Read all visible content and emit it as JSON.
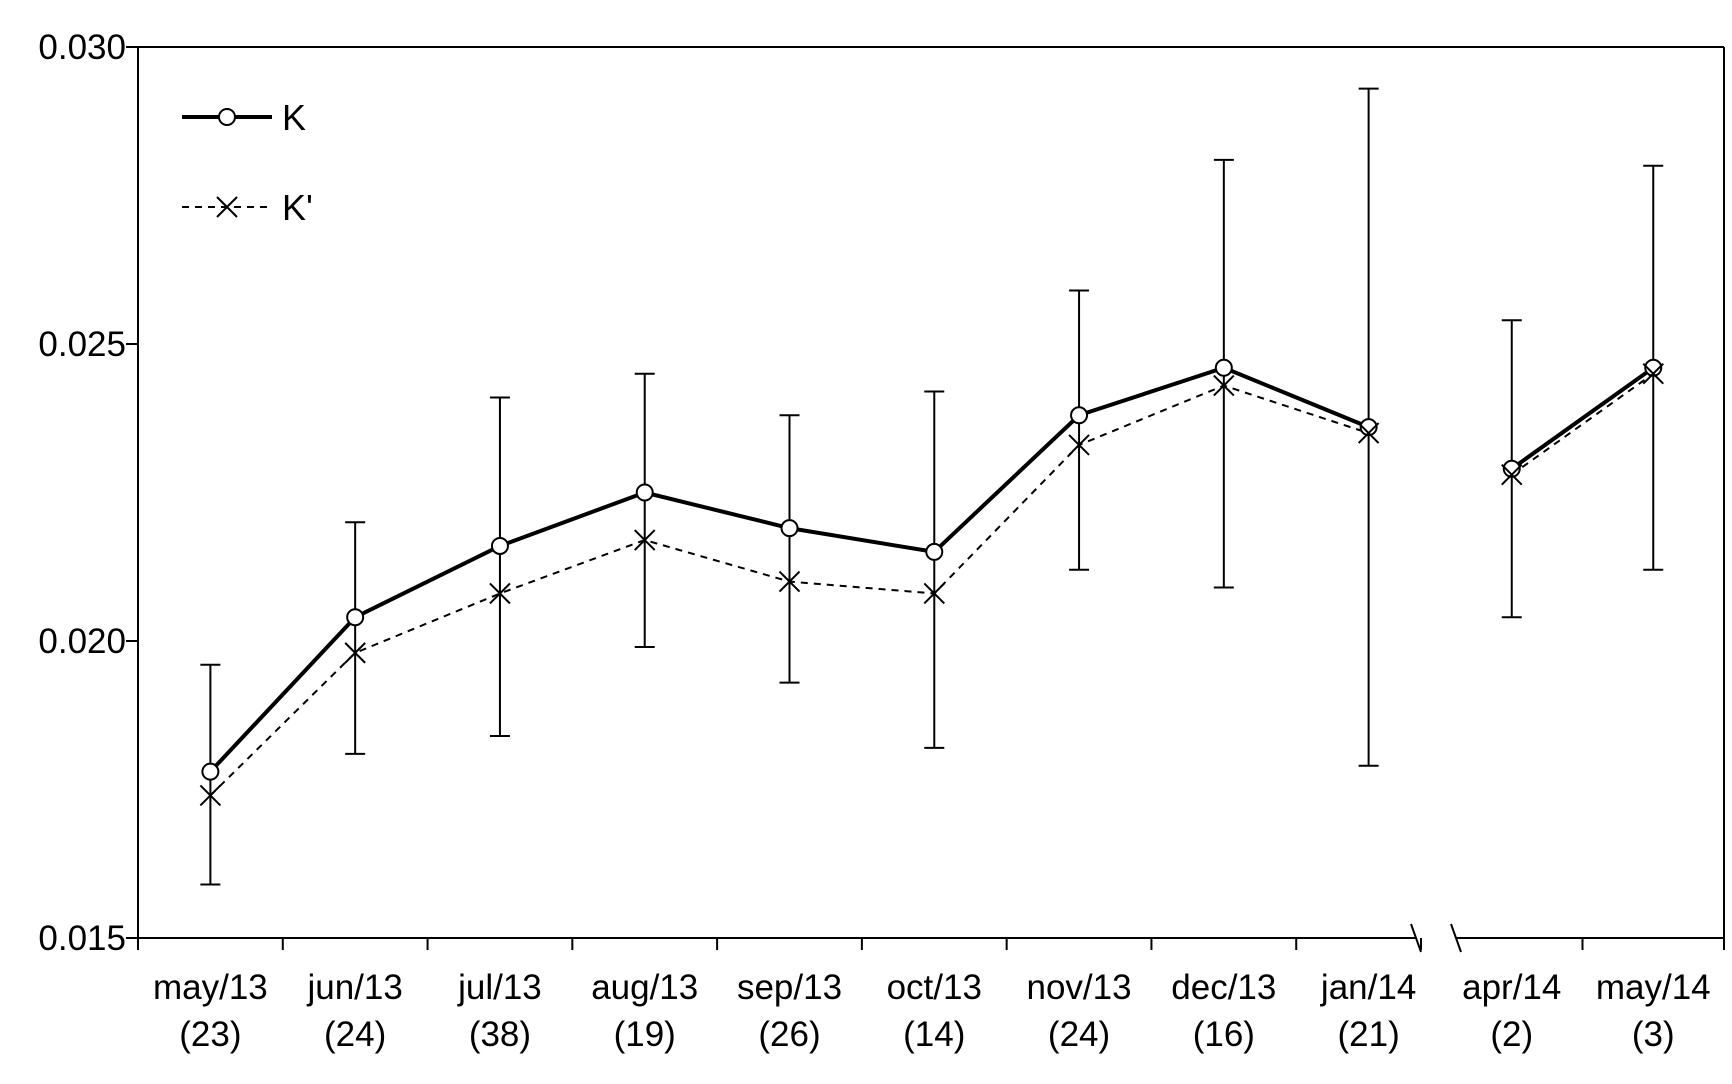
{
  "chart_data": {
    "type": "line",
    "title": "",
    "xlabel": "",
    "ylabel": "",
    "categories": [
      {
        "month": "may/13",
        "n": "(23)"
      },
      {
        "month": "jun/13",
        "n": "(24)"
      },
      {
        "month": "jul/13",
        "n": "(38)"
      },
      {
        "month": "aug/13",
        "n": "(19)"
      },
      {
        "month": "sep/13",
        "n": "(26)"
      },
      {
        "month": "oct/13",
        "n": "(14)"
      },
      {
        "month": "nov/13",
        "n": "(24)"
      },
      {
        "month": "dec/13",
        "n": "(16)"
      },
      {
        "month": "jan/14",
        "n": "(21)"
      },
      {
        "month": "apr/14",
        "n": "(2)"
      },
      {
        "month": "may/14",
        "n": "(3)"
      }
    ],
    "axis_break_after_index": 8,
    "ylim": [
      0.015,
      0.03
    ],
    "yticks": [
      "0.015",
      "0.020",
      "0.025",
      "0.030"
    ],
    "grid": false,
    "legend_position": "top-left",
    "series": [
      {
        "name": "K",
        "style": "solid",
        "marker": "circle",
        "values": [
          0.0178,
          0.0204,
          0.0216,
          0.0225,
          0.0219,
          0.0215,
          0.0238,
          0.0246,
          0.0236,
          0.0229,
          0.0246
        ]
      },
      {
        "name": "K'",
        "style": "dashed",
        "marker": "x",
        "values": [
          0.0174,
          0.0198,
          0.0208,
          0.0217,
          0.021,
          0.0208,
          0.0233,
          0.0243,
          0.0235,
          0.0228,
          0.0245
        ]
      }
    ],
    "error_bars": {
      "lower": [
        0.0159,
        0.0181,
        0.0184,
        0.0199,
        0.0193,
        0.0182,
        0.0212,
        0.0209,
        0.0179,
        0.0204,
        0.0212
      ],
      "upper": [
        0.0196,
        0.022,
        0.0241,
        0.0245,
        0.0238,
        0.0242,
        0.0259,
        0.0281,
        0.0293,
        0.0254,
        0.028
      ]
    }
  }
}
